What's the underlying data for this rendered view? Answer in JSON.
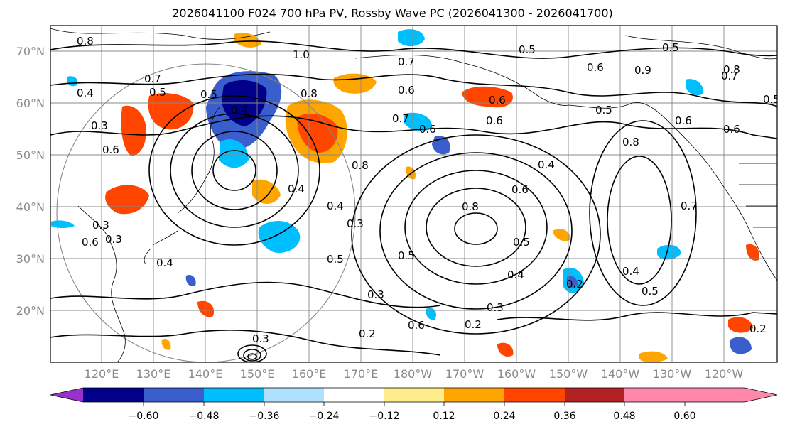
{
  "title": "2026041100 F024 700 hPa PV, Rossby Wave PC (2026041300 - 2026041700)",
  "lat_labels": [
    "70°N",
    "60°N",
    "50°N",
    "40°N",
    "30°N",
    "20°N"
  ],
  "lon_labels": [
    "120°E",
    "130°E",
    "140°E",
    "150°E",
    "160°E",
    "170°E",
    "180°W",
    "170°W",
    "160°W",
    "150°W",
    "140°W",
    "130°W",
    "120°W"
  ],
  "colorbar": {
    "ticks": [
      "−0.60",
      "−0.48",
      "−0.36",
      "−0.24",
      "−0.12",
      "0.12",
      "0.24",
      "0.36",
      "0.48",
      "0.60"
    ],
    "colors": [
      "#9932cc",
      "#00008b",
      "#3a5fcd",
      "#00bfff",
      "#b0e2ff",
      "#ffffff",
      "#ffec8b",
      "#ffa500",
      "#ff4500",
      "#b22222",
      "#ff88aa"
    ]
  },
  "contour_labels": [
    "0.8",
    "1.0",
    "0.5",
    "0.7",
    "0.5",
    "0.6",
    "0.9",
    "0.7",
    "0.4",
    "0.7",
    "0.5",
    "0.3",
    "0.6",
    "0.6",
    "0.8",
    "0.4",
    "0.7",
    "0.6",
    "0.6",
    "0.6",
    "0.6",
    "0.5",
    "0.5",
    "0.6",
    "0.4",
    "0.8",
    "0.8",
    "0.8",
    "0.4",
    "0.4",
    "0.3",
    "0.5",
    "0.5",
    "0.3",
    "0.3",
    "0.3",
    "0.6",
    "0.5",
    "0.4",
    "0.2",
    "0.5",
    "0.4",
    "0.2",
    "0.2",
    "0.6",
    "0.2",
    "0.3",
    "0.4",
    "0.5",
    "0.8",
    "0.7",
    "0.6",
    "0.3"
  ],
  "colors": {
    "contour": "#000000",
    "grid": "#888888",
    "coast": "#000000"
  },
  "icons": [
    "colorbar-arrow-icon"
  ]
}
